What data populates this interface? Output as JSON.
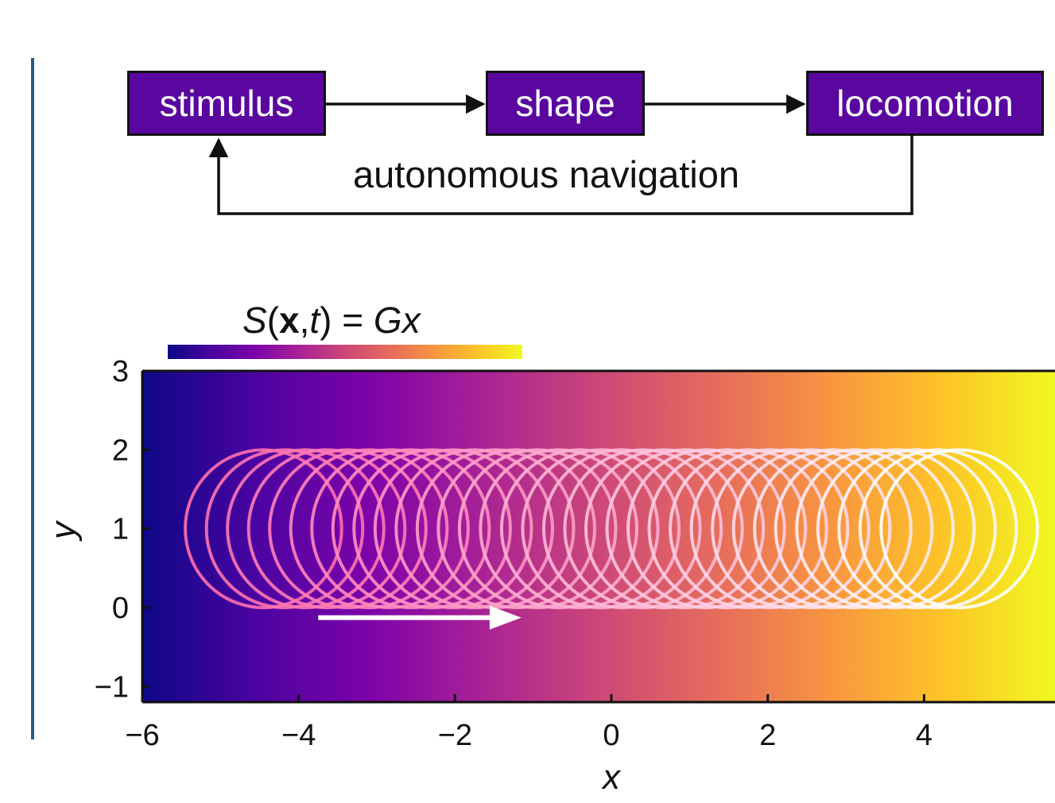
{
  "flow": {
    "boxes": [
      {
        "id": "stimulus",
        "label": "stimulus"
      },
      {
        "id": "shape",
        "label": "shape"
      },
      {
        "id": "locomotion",
        "label": "locomotion"
      }
    ],
    "loop_label": "autonomous navigation",
    "box_color": "#5a07a0"
  },
  "formula": {
    "lhs_italic": "S",
    "open": "(",
    "bold": "x",
    "comma": ",",
    "t_italic": "t",
    "close_eq": ") = ",
    "rhs_italic": "Gx"
  },
  "colors": {
    "accent_bar": "#2e5a88",
    "plasma": [
      "#0d0887",
      "#4b03a1",
      "#7e03a8",
      "#a92395",
      "#cc4778",
      "#e56b5d",
      "#f89441",
      "#fdc328",
      "#f0f921"
    ],
    "circle_start": "#ff6fae",
    "circle_end": "#ffffff",
    "arrow": "#ffffff"
  },
  "chart_data": {
    "type": "scatter",
    "description_free": true,
    "xlabel": "x",
    "ylabel": "y",
    "xlim": [
      -6,
      5.6
    ],
    "ylim": [
      -1.2,
      3
    ],
    "x_ticks": [
      -6,
      -4,
      -2,
      0,
      2,
      4
    ],
    "x_tick_labels": [
      "−6",
      "−4",
      "−2",
      "0",
      "2",
      "4"
    ],
    "y_ticks": [
      -1,
      0,
      1,
      2,
      3
    ],
    "y_tick_labels": [
      "−1",
      "0",
      "1",
      "2",
      "3"
    ],
    "background": "plasma gradient along x",
    "trajectory": {
      "circle_radius": 1.0,
      "center_y": 1.0,
      "center_x_start": -4.45,
      "center_x_end": 4.45,
      "circle_count": 34
    },
    "direction_arrow": {
      "x_start": -3.75,
      "x_end": -1.15,
      "y": -0.5
    }
  }
}
